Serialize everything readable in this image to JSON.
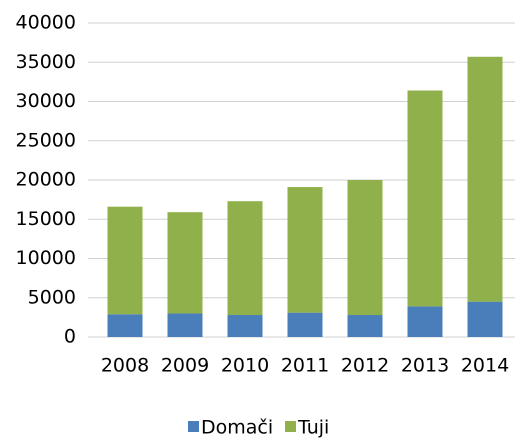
{
  "chart_data": {
    "type": "bar",
    "stacked": true,
    "categories": [
      "2008",
      "2009",
      "2010",
      "2011",
      "2012",
      "2013",
      "2014"
    ],
    "series": [
      {
        "name": "Domači",
        "color": "#4a7ebb",
        "values": [
          2900,
          3000,
          2800,
          3100,
          2800,
          3900,
          4500
        ]
      },
      {
        "name": "Tuji",
        "color": "#8fb04a",
        "values": [
          13700,
          12900,
          14500,
          16000,
          17200,
          27500,
          31200
        ]
      }
    ],
    "ylim": [
      0,
      40000
    ],
    "yticks": [
      0,
      5000,
      10000,
      15000,
      20000,
      25000,
      30000,
      35000,
      40000
    ],
    "grid": true,
    "legend": "bottom"
  }
}
